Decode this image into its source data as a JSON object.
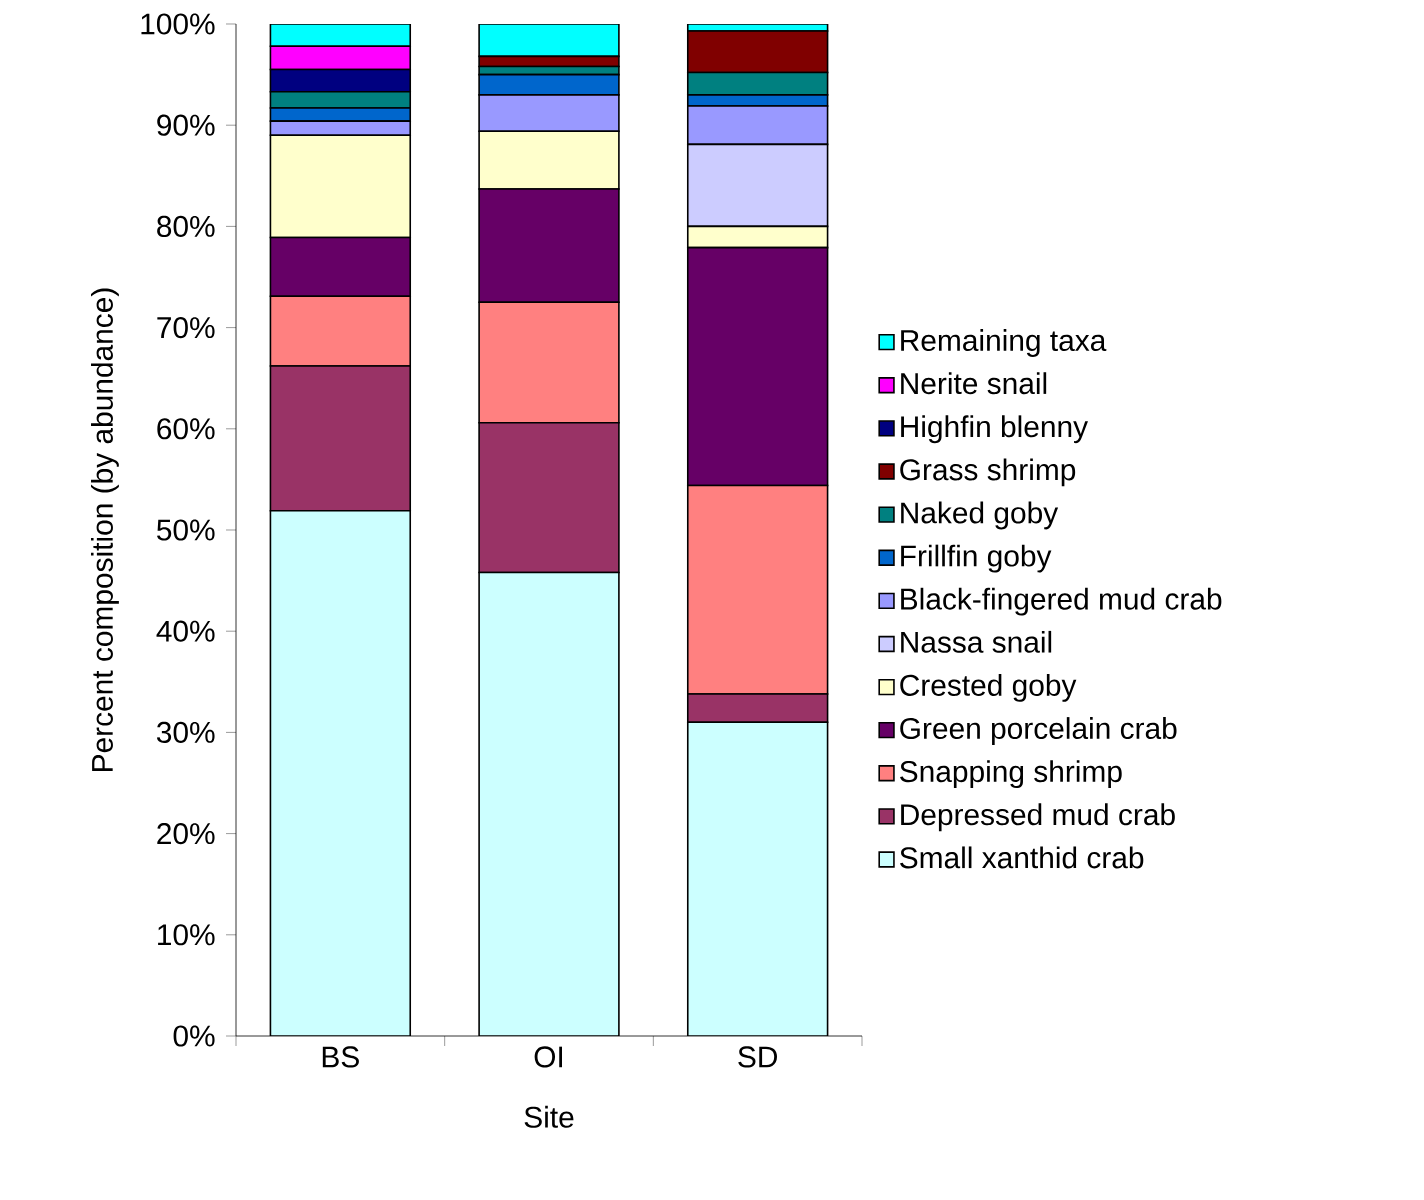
{
  "chart_data": {
    "type": "bar",
    "stacked": true,
    "xlabel": "Site",
    "ylabel": "Percent composition (by abundance)",
    "categories": [
      "BS",
      "OI",
      "SD"
    ],
    "ylim": [
      0,
      100
    ],
    "yticks": [
      {
        "value": 0,
        "label": "0%"
      },
      {
        "value": 10,
        "label": "10%"
      },
      {
        "value": 20,
        "label": "20%"
      },
      {
        "value": 30,
        "label": "30%"
      },
      {
        "value": 40,
        "label": "40%"
      },
      {
        "value": 50,
        "label": "50%"
      },
      {
        "value": 60,
        "label": "60%"
      },
      {
        "value": 70,
        "label": "70%"
      },
      {
        "value": 80,
        "label": "80%"
      },
      {
        "value": 90,
        "label": "90%"
      },
      {
        "value": 100,
        "label": "100%"
      }
    ],
    "legend": "right",
    "series": [
      {
        "name": "Small xanthid crab",
        "color": "#ccffff",
        "values": [
          51.9,
          45.8,
          31.0
        ]
      },
      {
        "name": "Depressed mud crab",
        "color": "#993366",
        "values": [
          14.3,
          14.8,
          2.8
        ]
      },
      {
        "name": "Snapping shrimp",
        "color": "#ff8080",
        "values": [
          6.9,
          11.9,
          20.6
        ]
      },
      {
        "name": "Green porcelain crab",
        "color": "#660066",
        "values": [
          5.8,
          11.2,
          23.5
        ]
      },
      {
        "name": "Crested goby",
        "color": "#ffffcc",
        "values": [
          10.1,
          5.7,
          2.1
        ]
      },
      {
        "name": "Nassa snail",
        "color": "#ccccff",
        "values": [
          0,
          0,
          8.1
        ]
      },
      {
        "name": "Black-fingered mud crab",
        "color": "#9999ff",
        "values": [
          1.4,
          3.6,
          3.8
        ]
      },
      {
        "name": "Frillfin goby",
        "color": "#0066cc",
        "values": [
          1.3,
          2.0,
          1.1
        ]
      },
      {
        "name": "Naked goby",
        "color": "#008080",
        "values": [
          1.6,
          0.8,
          2.2
        ]
      },
      {
        "name": "Grass shrimp",
        "color": "#800000",
        "values": [
          0,
          1.0,
          4.1
        ]
      },
      {
        "name": "Highfin blenny",
        "color": "#000080",
        "values": [
          2.2,
          0,
          0
        ]
      },
      {
        "name": "Nerite snail",
        "color": "#ff00ff",
        "values": [
          2.3,
          0,
          0
        ]
      },
      {
        "name": "Remaining taxa",
        "color": "#00ffff",
        "values": [
          2.2,
          3.2,
          0.7
        ]
      }
    ]
  }
}
